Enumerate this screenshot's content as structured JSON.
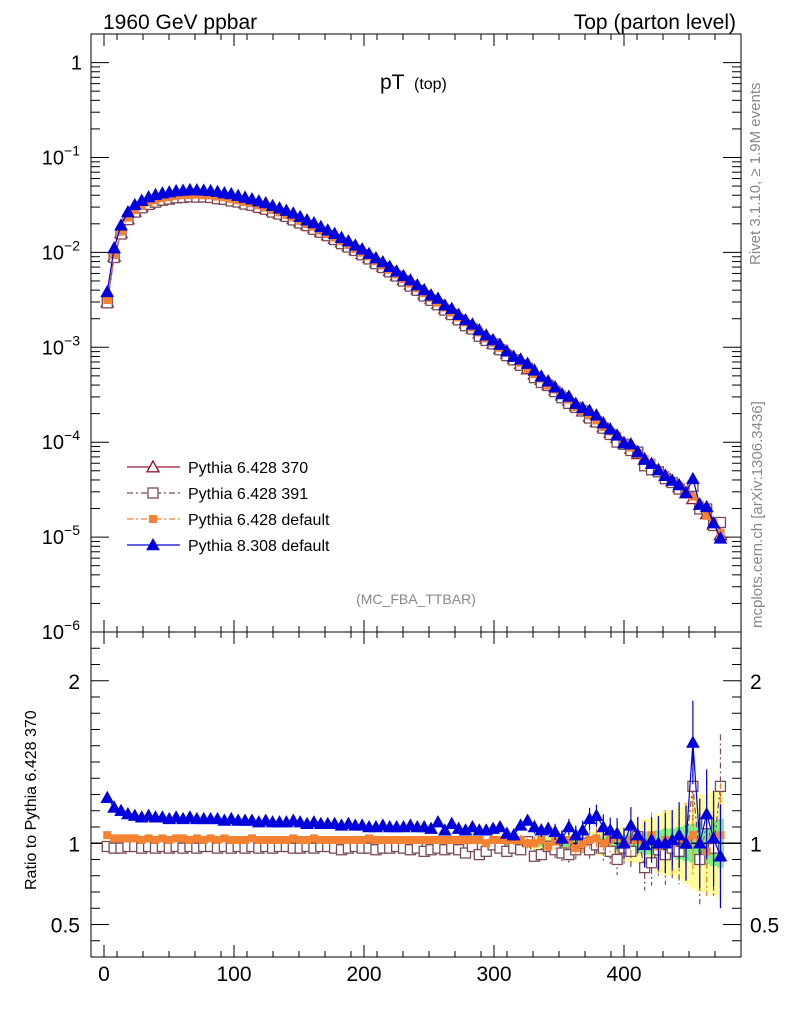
{
  "header": {
    "left": "1960 GeV ppbar",
    "right": "Top (parton level)"
  },
  "side": {
    "rivet": "Rivet 3.1.10, ≥ 1.9M events",
    "mcplots": "mcplots.cern.ch [arXiv:1306.3436]"
  },
  "plot": {
    "title_main": "pT",
    "title_sub": "(top)",
    "analysis": "(MC_FBA_TTBAR)",
    "ratio_ylabel": "Ratio to Pythia 6.428 370"
  },
  "colors": {
    "p370": "#9b1b30",
    "p391": "#7a4a55",
    "p6def": "#f58231",
    "p8def": "#0000dd",
    "band_yellow": "#fdfd9a",
    "band_green": "#7af07a"
  },
  "chart_data": {
    "type": "scatter",
    "x_label": "",
    "top": {
      "y_scale": "log",
      "ylim": [
        1e-06,
        2
      ],
      "y_ticks": [
        {
          "v": 1,
          "label": "1"
        },
        {
          "v": 0.1,
          "base": "10",
          "exp": "−1"
        },
        {
          "v": 0.01,
          "base": "10",
          "exp": "−2"
        },
        {
          "v": 0.001,
          "base": "10",
          "exp": "−3"
        },
        {
          "v": 0.0001,
          "base": "10",
          "exp": "−4"
        },
        {
          "v": 1e-05,
          "base": "10",
          "exp": "−5"
        },
        {
          "v": 1e-06,
          "base": "10",
          "exp": "−6"
        }
      ],
      "anchors_x": [
        2.5,
        7.5,
        12.5,
        20,
        30,
        40,
        50,
        60,
        70,
        80,
        90,
        100,
        120,
        140,
        160,
        180,
        200,
        220,
        240,
        260,
        280,
        300,
        320,
        340,
        360,
        380,
        400,
        420,
        440,
        460,
        477.5
      ],
      "anchors_y": [
        0.003,
        0.0088,
        0.0155,
        0.025,
        0.031,
        0.035,
        0.0375,
        0.039,
        0.0395,
        0.039,
        0.0375,
        0.0355,
        0.0305,
        0.0245,
        0.0185,
        0.0135,
        0.0095,
        0.0064,
        0.0042,
        0.0027,
        0.00172,
        0.00108,
        0.00068,
        0.00042,
        0.00026,
        0.00016,
        9.8e-05,
        6e-05,
        3.6e-05,
        2.1e-05,
        9e-06
      ]
    },
    "ratio": {
      "ylim": [
        0.3,
        2.3
      ],
      "y_ticks": [
        0.5,
        1,
        2
      ],
      "y_tick_labels": [
        "0.5",
        "1",
        "2"
      ]
    },
    "x": {
      "xlim": [
        -10,
        490
      ],
      "ticks": [
        0,
        100,
        200,
        300,
        400
      ],
      "tick_labels": [
        "0",
        "100",
        "200",
        "300",
        "400"
      ]
    },
    "series": [
      {
        "name": "Pythia 6.428 370",
        "marker": "open-triangle",
        "line": "solid"
      },
      {
        "name": "Pythia 6.428 391",
        "marker": "open-square",
        "line": "dashdot"
      },
      {
        "name": "Pythia 6.428 default",
        "marker": "filled-square",
        "line": "dashdot"
      },
      {
        "name": "Pythia 8.308 default",
        "marker": "filled-triangle",
        "line": "solid"
      }
    ],
    "ratio_values": {
      "p391": [
        0.98,
        0.97,
        0.97,
        0.98,
        0.98,
        0.97,
        0.98,
        0.97,
        0.98,
        0.97,
        0.98,
        0.97,
        0.98,
        0.97,
        0.98,
        0.98,
        0.97,
        0.98,
        0.97,
        0.98,
        0.97,
        0.98,
        0.97,
        0.98,
        0.97,
        0.98,
        0.98,
        0.97,
        0.97,
        0.98,
        0.97,
        0.98,
        0.98,
        0.97,
        0.96,
        0.97,
        0.98,
        0.97,
        0.97,
        0.96,
        0.97,
        0.97,
        0.98,
        0.97,
        0.96,
        0.97,
        0.95,
        0.96,
        0.97,
        0.96,
        0.97,
        0.96,
        0.94,
        0.98,
        0.93,
        0.95,
        0.99,
        0.97,
        0.95,
        0.97,
        0.96,
        1.01,
        0.92,
        0.93,
        0.98,
        0.96,
        0.94,
        0.93,
        0.96,
        1.0,
        0.96,
        0.99,
        0.97,
        0.95,
        0.9,
        0.97,
        0.95,
        1.04,
        0.85,
        0.88,
        0.96,
        0.93,
        0.97,
        0.95,
        1.0,
        1.35,
        0.9,
        1.12,
        0.97,
        1.35
      ],
      "p6def": [
        1.05,
        1.03,
        1.03,
        1.03,
        1.03,
        1.02,
        1.03,
        1.02,
        1.03,
        1.02,
        1.03,
        1.03,
        1.02,
        1.03,
        1.02,
        1.03,
        1.02,
        1.03,
        1.02,
        1.02,
        1.02,
        1.03,
        1.02,
        1.02,
        1.02,
        1.02,
        1.02,
        1.03,
        1.02,
        1.02,
        1.03,
        1.02,
        1.02,
        1.02,
        1.02,
        1.02,
        1.02,
        1.02,
        1.03,
        1.02,
        1.02,
        1.02,
        1.02,
        1.02,
        1.02,
        1.02,
        1.02,
        1.02,
        1.02,
        1.02,
        1.02,
        1.02,
        1.02,
        1.02,
        1.02,
        1.0,
        1.02,
        1.02,
        1.02,
        1.02,
        1.02,
        1.0,
        1.0,
        1.02,
        0.98,
        1.01,
        1.02,
        1.02,
        0.97,
        1.0,
        1.02,
        1.03,
        1.0,
        1.02,
        1.04,
        0.99,
        1.02,
        1.02,
        1.0,
        1.05,
        0.98,
        1.02,
        1.0,
        1.03,
        1.02,
        1.05,
        1.0,
        0.95,
        1.03,
        1.05
      ],
      "p8def": [
        1.28,
        1.22,
        1.2,
        1.18,
        1.17,
        1.16,
        1.17,
        1.16,
        1.16,
        1.15,
        1.16,
        1.15,
        1.16,
        1.15,
        1.15,
        1.15,
        1.15,
        1.14,
        1.15,
        1.14,
        1.14,
        1.14,
        1.13,
        1.14,
        1.13,
        1.13,
        1.13,
        1.14,
        1.13,
        1.12,
        1.13,
        1.12,
        1.12,
        1.12,
        1.11,
        1.12,
        1.11,
        1.11,
        1.1,
        1.1,
        1.11,
        1.1,
        1.1,
        1.1,
        1.11,
        1.1,
        1.1,
        1.09,
        1.13,
        1.08,
        1.12,
        1.09,
        1.08,
        1.1,
        1.08,
        1.08,
        1.09,
        1.1,
        1.06,
        1.05,
        1.11,
        1.14,
        1.1,
        1.08,
        1.09,
        1.07,
        1.03,
        1.1,
        1.05,
        1.08,
        1.15,
        1.17,
        1.1,
        1.08,
        1.06,
        1.0,
        1.11,
        1.05,
        0.99,
        1.02,
        1.0,
        1.0,
        1.02,
        1.05,
        1.0,
        1.62,
        1.0,
        1.18,
        1.03,
        0.92
      ],
      "band_yellow": [
        0.01,
        0.01,
        0.01,
        0.01,
        0.01,
        0.01,
        0.01,
        0.01,
        0.01,
        0.01,
        0.01,
        0.01,
        0.01,
        0.01,
        0.01,
        0.01,
        0.01,
        0.01,
        0.01,
        0.01,
        0.01,
        0.01,
        0.01,
        0.01,
        0.01,
        0.01,
        0.01,
        0.01,
        0.01,
        0.01,
        0.01,
        0.01,
        0.01,
        0.01,
        0.01,
        0.01,
        0.01,
        0.01,
        0.01,
        0.01,
        0.01,
        0.01,
        0.01,
        0.01,
        0.01,
        0.01,
        0.01,
        0.01,
        0.01,
        0.01,
        0.01,
        0.01,
        0.01,
        0.01,
        0.01,
        0.01,
        0.02,
        0.02,
        0.03,
        0.03,
        0.03,
        0.03,
        0.04,
        0.04,
        0.04,
        0.05,
        0.05,
        0.05,
        0.06,
        0.06,
        0.07,
        0.07,
        0.08,
        0.08,
        0.1,
        0.1,
        0.12,
        0.12,
        0.15,
        0.15,
        0.18,
        0.2,
        0.2,
        0.22,
        0.25,
        0.28,
        0.3,
        0.3,
        0.32,
        0.35
      ],
      "band_green": [
        0.005,
        0.005,
        0.005,
        0.005,
        0.005,
        0.005,
        0.005,
        0.005,
        0.005,
        0.005,
        0.005,
        0.005,
        0.005,
        0.005,
        0.005,
        0.005,
        0.005,
        0.005,
        0.005,
        0.005,
        0.005,
        0.005,
        0.005,
        0.005,
        0.005,
        0.005,
        0.005,
        0.005,
        0.005,
        0.005,
        0.005,
        0.005,
        0.005,
        0.005,
        0.005,
        0.005,
        0.005,
        0.005,
        0.005,
        0.005,
        0.005,
        0.005,
        0.005,
        0.005,
        0.005,
        0.005,
        0.005,
        0.005,
        0.005,
        0.005,
        0.005,
        0.005,
        0.005,
        0.005,
        0.005,
        0.005,
        0.01,
        0.01,
        0.015,
        0.015,
        0.015,
        0.015,
        0.02,
        0.02,
        0.02,
        0.025,
        0.025,
        0.025,
        0.03,
        0.03,
        0.035,
        0.035,
        0.04,
        0.04,
        0.05,
        0.05,
        0.06,
        0.06,
        0.07,
        0.07,
        0.08,
        0.09,
        0.09,
        0.1,
        0.11,
        0.12,
        0.13,
        0.13,
        0.14,
        0.15
      ]
    }
  }
}
